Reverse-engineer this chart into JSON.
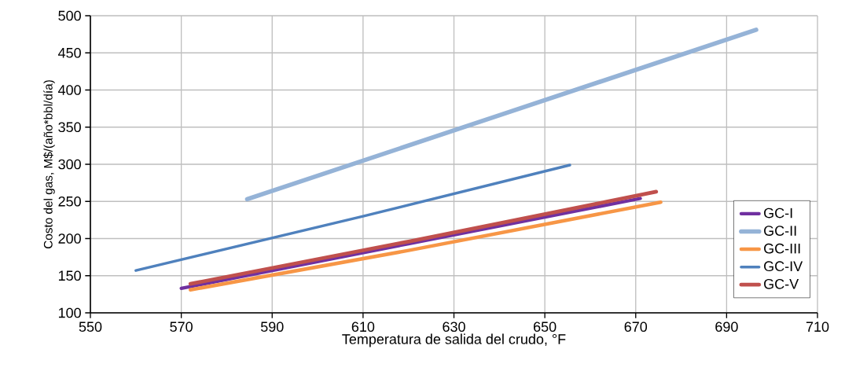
{
  "chart_data": {
    "type": "line",
    "xlabel": "Temperatura de salida del crudo, °F",
    "ylabel": "Costo del gas, M$/(año*bbl/día)",
    "xlim": [
      550,
      710
    ],
    "ylim": [
      100,
      500
    ],
    "xticks": [
      550,
      570,
      590,
      610,
      630,
      650,
      670,
      690,
      710
    ],
    "yticks": [
      100,
      150,
      200,
      250,
      300,
      350,
      400,
      450,
      500
    ],
    "grid": true,
    "legend": "bottom right",
    "marker": "none",
    "line_style": "solid",
    "series": [
      {
        "name": "GC-I",
        "color": "#7030a0",
        "x": [
          570,
          620,
          671
        ],
        "values": [
          133,
          193,
          254
        ]
      },
      {
        "name": "GC-II",
        "color": "#95b3d7",
        "x": [
          584.5,
          640,
          696.5
        ],
        "values": [
          253,
          366,
          481
        ]
      },
      {
        "name": "GC-III",
        "color": "#f79646",
        "x": [
          572,
          620,
          675.5
        ],
        "values": [
          131,
          184,
          249
        ]
      },
      {
        "name": "GC-IV",
        "color": "#4f81bd",
        "x": [
          560,
          610,
          655.5
        ],
        "values": [
          157,
          230,
          299
        ]
      },
      {
        "name": "GC-V",
        "color": "#c0504d",
        "x": [
          572,
          620,
          674.5
        ],
        "values": [
          139,
          196,
          263
        ]
      }
    ]
  }
}
